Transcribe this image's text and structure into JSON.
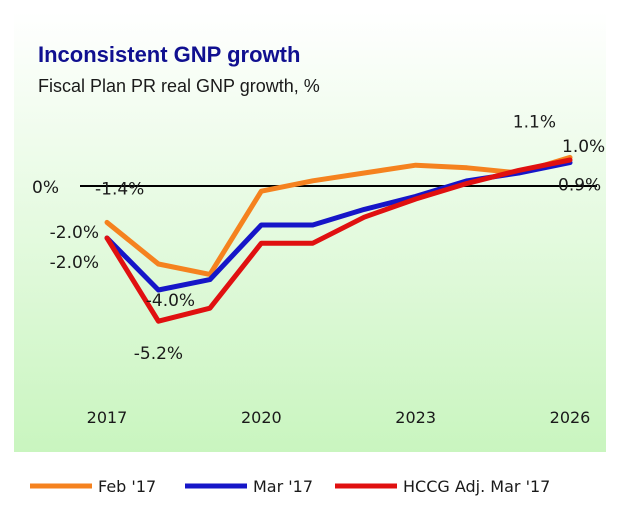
{
  "chart_data": {
    "type": "line",
    "title": "Inconsistent GNP growth",
    "subtitle": "Fiscal Plan PR real GNP growth, %",
    "x": [
      2017,
      2018,
      2019,
      2020,
      2021,
      2022,
      2023,
      2024,
      2025,
      2026
    ],
    "x_tick_labels": [
      "2017",
      "2020",
      "2023",
      "2026"
    ],
    "ylim": [
      -6,
      3
    ],
    "zero_label": "0%",
    "grid": false,
    "legend_position": "bottom",
    "series": [
      {
        "name": "Feb '17",
        "color": "#f5821f",
        "values": [
          -1.4,
          -3.0,
          -3.4,
          -0.2,
          0.2,
          0.5,
          0.8,
          0.7,
          0.5,
          1.1
        ]
      },
      {
        "name": "Mar '17",
        "color": "#1616c8",
        "values": [
          -2.0,
          -4.0,
          -3.6,
          -1.5,
          -1.5,
          -0.9,
          -0.4,
          0.2,
          0.5,
          0.9
        ]
      },
      {
        "name": "HCCG Adj. Mar '17",
        "color": "#e01010",
        "values": [
          -2.0,
          -5.2,
          -4.7,
          -2.2,
          -2.2,
          -1.2,
          -0.5,
          0.1,
          0.6,
          1.0
        ]
      }
    ],
    "annotations": [
      {
        "text": "-1.4%",
        "series": 0,
        "index": 0
      },
      {
        "text": "-2.0%",
        "series": 1,
        "index": 0
      },
      {
        "text": "-2.0%",
        "series": 2,
        "index": 0
      },
      {
        "text": "-4.0%",
        "series": 1,
        "index": 1
      },
      {
        "text": "-5.2%",
        "series": 2,
        "index": 1
      },
      {
        "text": "1.1%",
        "series": 0,
        "index": 9
      },
      {
        "text": "1.0%",
        "series": 2,
        "index": 9
      },
      {
        "text": "0.9%",
        "series": 1,
        "index": 9
      }
    ],
    "colors": {
      "background_top": "#ffffff",
      "background_bottom": "#c9f5bf",
      "title": "#101090",
      "axis": "#000000"
    }
  }
}
